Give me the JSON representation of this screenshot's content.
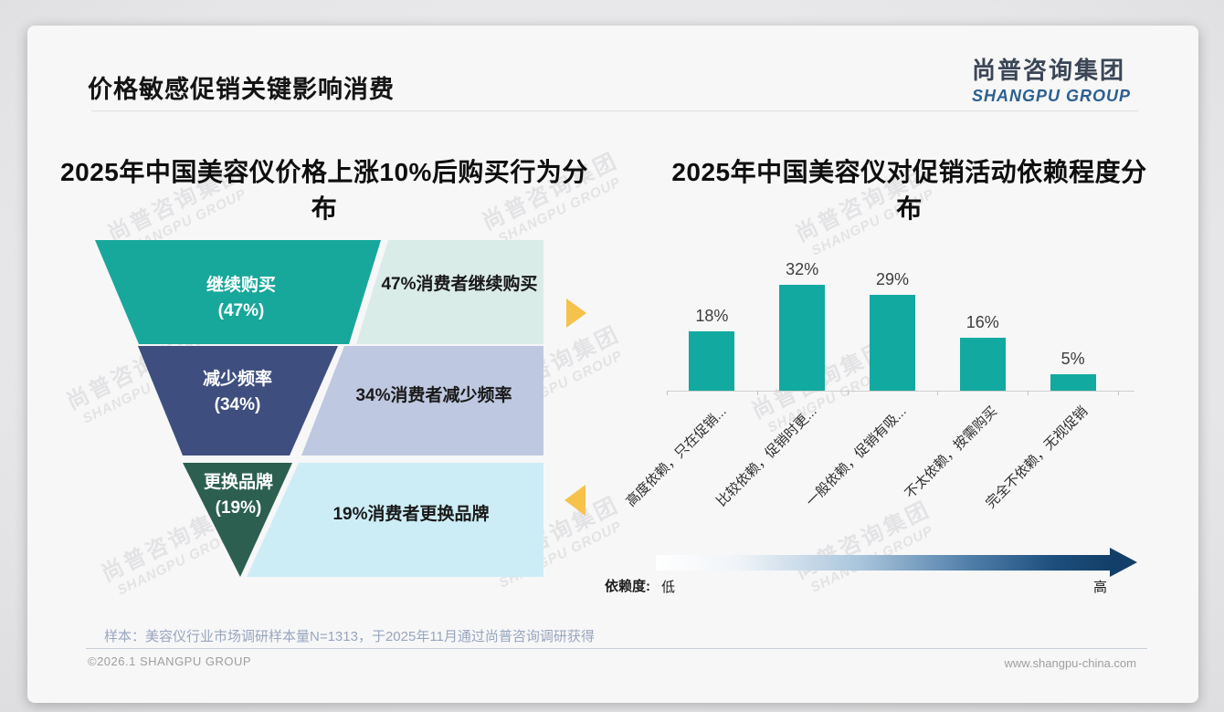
{
  "header": {
    "title": "价格敏感促销关键影响消费",
    "logo_cn": "尚普咨询集团",
    "logo_en": "SHANGPU GROUP"
  },
  "watermark": {
    "cn": "尚普咨询集团",
    "en": "SHANGPU GROUP"
  },
  "accents": {
    "arrow_yellow": "#F6C24B",
    "dependency_gradient_end": "#123F69"
  },
  "chart_data": [
    {
      "type": "funnel",
      "title": "2025年中国美容仪价格上涨10%后购买行为分布",
      "categories": [
        "继续购买",
        "减少频率",
        "更换品牌"
      ],
      "values": [
        47,
        34,
        19
      ],
      "unit": "%",
      "value_labels": [
        "(47%)",
        "(34%)",
        "(19%)"
      ],
      "annotations": [
        "47%消费者继续购买",
        "34%消费者减少频率",
        "19%消费者更换品牌"
      ],
      "colors": [
        "#18A79B",
        "#3E4E7E",
        "#2C5F50"
      ],
      "panel_colors": [
        "#DAECE8",
        "#BEC8E0",
        "#CDEDF6"
      ]
    },
    {
      "type": "bar",
      "title": "2025年中国美容仪对促销活动依赖程度分布",
      "categories": [
        "高度依赖，只在促销...",
        "比较依赖，促销时更...",
        "一般依赖，促销有吸...",
        "不太依赖，按需购买",
        "完全不依赖，无视促销"
      ],
      "values": [
        18,
        32,
        29,
        16,
        5
      ],
      "unit": "%",
      "value_labels": [
        "18%",
        "32%",
        "29%",
        "16%",
        "5%"
      ],
      "bar_color": "#12A9A0",
      "ylim": [
        0,
        35
      ],
      "grid": false,
      "dependency_axis": {
        "label": "依赖度:",
        "low": "低",
        "high": "高"
      }
    }
  ],
  "footnote": "样本：美容仪行业市场调研样本量N=1313，于2025年11月通过尚普咨询调研获得",
  "footer": {
    "left": "©2026.1 SHANGPU GROUP",
    "right": "www.shangpu-china.com"
  }
}
